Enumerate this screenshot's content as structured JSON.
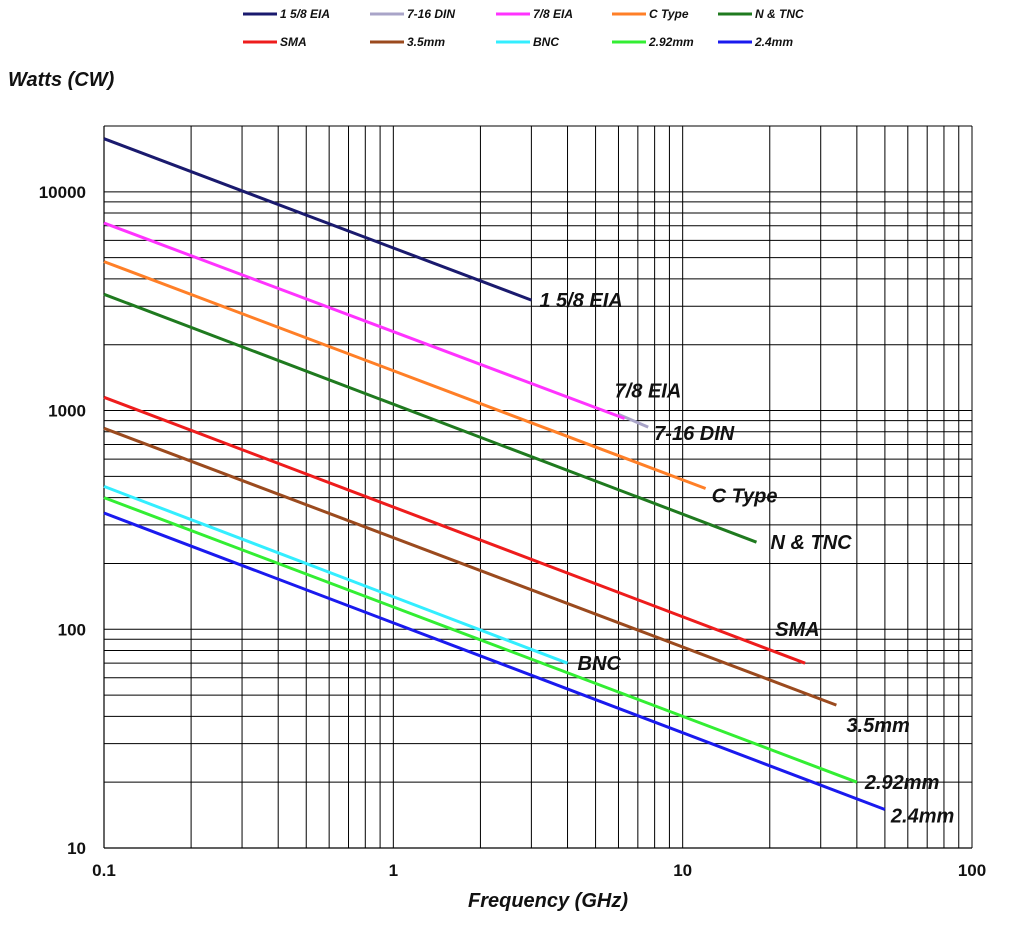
{
  "chart_data": {
    "type": "line",
    "title": "",
    "ylabel": "Watts (CW)",
    "xlabel": "Frequency (GHz)",
    "xscale": "log",
    "yscale": "log",
    "xlim": [
      0.1,
      100
    ],
    "ylim": [
      10,
      20000
    ],
    "x_ticks": [
      "0.1",
      "1",
      "10",
      "100"
    ],
    "y_ticks": [
      "10",
      "100",
      "1000",
      "10000"
    ],
    "grid": true,
    "legend_position": "top",
    "series": [
      {
        "name": "1 5/8 EIA",
        "label": "1 5/8 EIA",
        "color": "#1a1a6e",
        "x": [
          0.1,
          3
        ],
        "y": [
          17500,
          3200
        ]
      },
      {
        "name": "7-16 DIN",
        "label": "7-16 DIN",
        "color": "#a9a4c8",
        "x": [
          6,
          7.6
        ],
        "y": [
          960,
          840
        ]
      },
      {
        "name": "7/8 EIA",
        "label": "7/8 EIA",
        "color": "#ff33ff",
        "x": [
          0.1,
          6.3
        ],
        "y": [
          7200,
          920
        ]
      },
      {
        "name": "C Type",
        "label": "C Type",
        "color": "#ff7f27",
        "x": [
          0.1,
          12
        ],
        "y": [
          4800,
          440
        ]
      },
      {
        "name": "N & TNC",
        "label": "N & TNC",
        "color": "#1f7a1f",
        "x": [
          0.1,
          18
        ],
        "y": [
          3400,
          250
        ]
      },
      {
        "name": "SMA",
        "label": "SMA",
        "color": "#ee1c1c",
        "x": [
          0.1,
          26.5
        ],
        "y": [
          1150,
          70
        ]
      },
      {
        "name": "3.5mm",
        "label": "3.5mm",
        "color": "#9b4a1e",
        "x": [
          0.1,
          34
        ],
        "y": [
          830,
          45
        ]
      },
      {
        "name": "BNC",
        "label": "BNC",
        "color": "#33eeff",
        "x": [
          0.1,
          4
        ],
        "y": [
          450,
          70
        ]
      },
      {
        "name": "2.92mm",
        "label": "2.92mm",
        "color": "#33ee33",
        "x": [
          0.1,
          40
        ],
        "y": [
          400,
          20
        ]
      },
      {
        "name": "2.4mm",
        "label": "2.4mm",
        "color": "#1a1aee",
        "x": [
          0.1,
          50
        ],
        "y": [
          340,
          15
        ]
      }
    ]
  }
}
